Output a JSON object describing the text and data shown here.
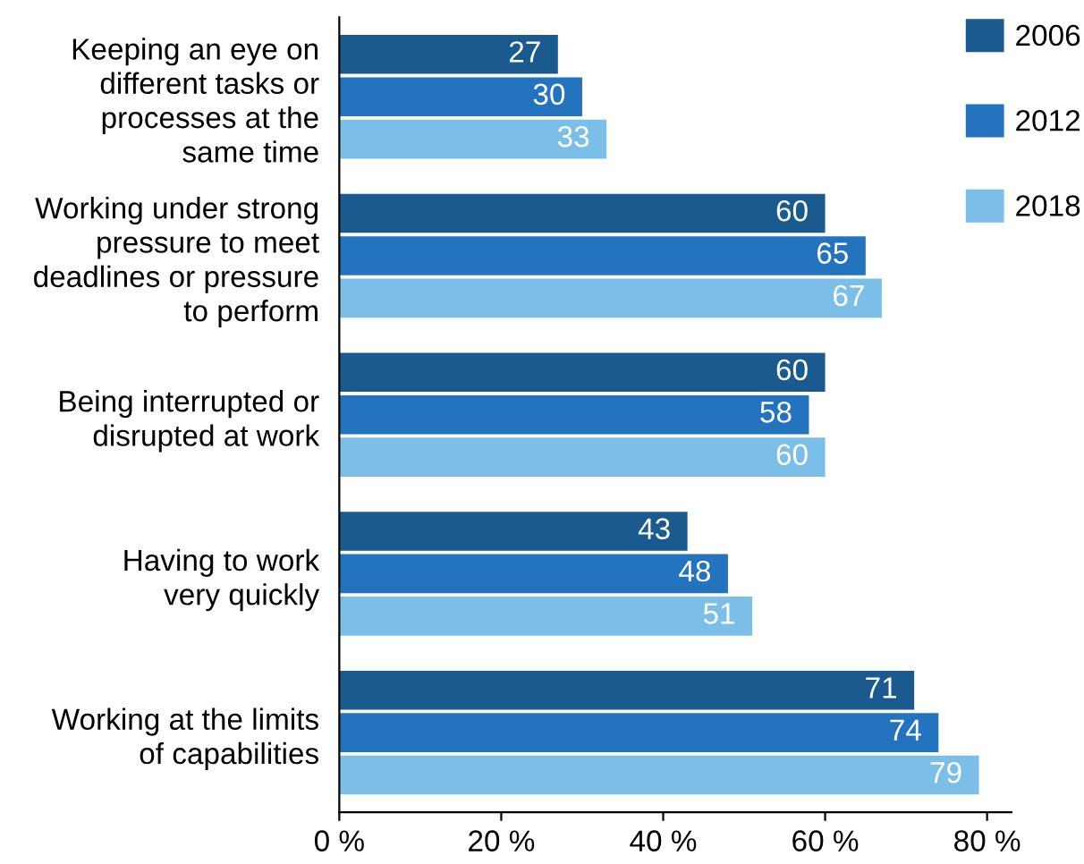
{
  "chart_data": {
    "type": "bar",
    "orientation": "horizontal",
    "categories": [
      "Keeping an eye on\ndifferent tasks or\nprocesses at the\nsame time",
      "Working under strong\npressure to meet\ndeadlines or pressure\nto perform",
      "Being interrupted or\ndisrupted at work",
      "Having to work\nvery quickly",
      "Working at the limits\nof capabilities"
    ],
    "series": [
      {
        "name": "2006",
        "color": "#1a5a8e",
        "values": [
          27,
          60,
          60,
          43,
          71
        ]
      },
      {
        "name": "2012",
        "color": "#2373bf",
        "values": [
          30,
          65,
          58,
          48,
          74
        ]
      },
      {
        "name": "2018",
        "color": "#7bbfe9",
        "values": [
          33,
          67,
          60,
          51,
          79
        ]
      }
    ],
    "xlim": [
      0,
      83
    ],
    "xticks": [
      {
        "value": 0,
        "label": "0 %"
      },
      {
        "value": 20,
        "label": "20 %"
      },
      {
        "value": 40,
        "label": "40 %"
      },
      {
        "value": 60,
        "label": "60 %"
      },
      {
        "value": 80,
        "label": "80 %"
      }
    ],
    "data_labels": true,
    "legend": "top right",
    "grid": false
  }
}
